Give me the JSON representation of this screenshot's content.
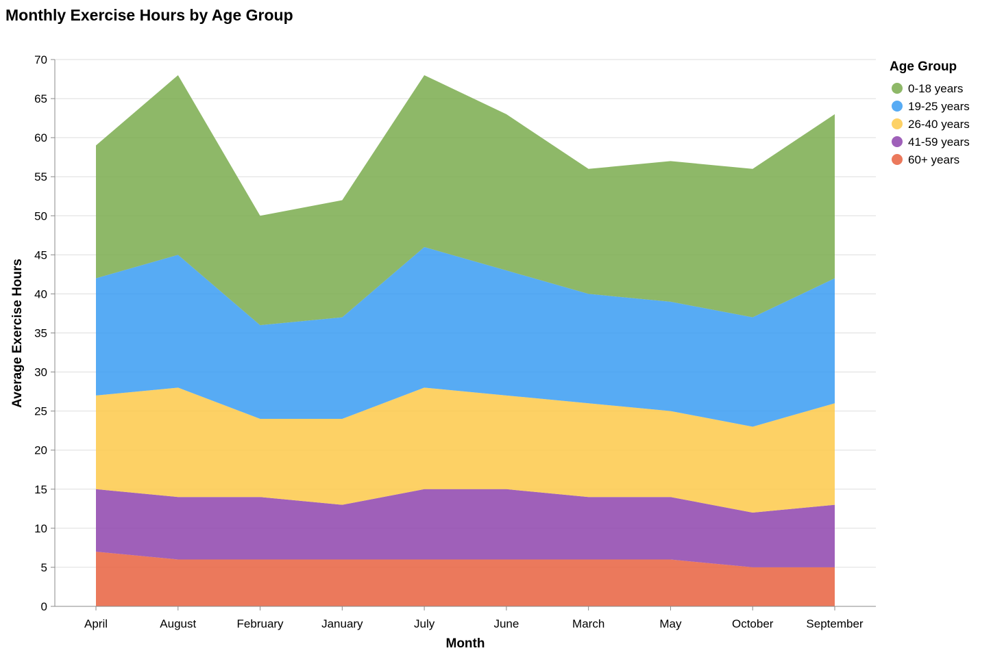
{
  "chart_data": {
    "type": "area",
    "stacked": true,
    "title": "Monthly Exercise Hours by Age Group",
    "xlabel": "Month",
    "ylabel": "Average Exercise Hours",
    "ylim": [
      0,
      70
    ],
    "yticks": [
      0,
      5,
      10,
      15,
      20,
      25,
      30,
      35,
      40,
      45,
      50,
      55,
      60,
      65,
      70
    ],
    "grid": true,
    "legend_title": "Age Group",
    "legend_position": "top-right",
    "categories": [
      "April",
      "August",
      "February",
      "January",
      "July",
      "June",
      "March",
      "May",
      "October",
      "September"
    ],
    "series": [
      {
        "name": "60+ years",
        "color": "#e8623f",
        "values": [
          7,
          6,
          6,
          6,
          6,
          6,
          6,
          6,
          5,
          5
        ]
      },
      {
        "name": "41-59 years",
        "color": "#8e44ad",
        "values": [
          8,
          8,
          8,
          7,
          9,
          9,
          8,
          8,
          7,
          8
        ]
      },
      {
        "name": "26-40 years",
        "color": "#fdc94a",
        "values": [
          12,
          14,
          10,
          11,
          13,
          12,
          12,
          11,
          11,
          13
        ]
      },
      {
        "name": "19-25 years",
        "color": "#3a9cf2",
        "values": [
          15,
          17,
          12,
          13,
          18,
          16,
          14,
          14,
          14,
          16
        ]
      },
      {
        "name": "0-18 years",
        "color": "#7aab4e",
        "values": [
          17,
          23,
          14,
          15,
          22,
          20,
          16,
          18,
          19,
          21
        ]
      }
    ],
    "legend_order": [
      "0-18 years",
      "19-25 years",
      "26-40 years",
      "41-59 years",
      "60+ years"
    ]
  }
}
